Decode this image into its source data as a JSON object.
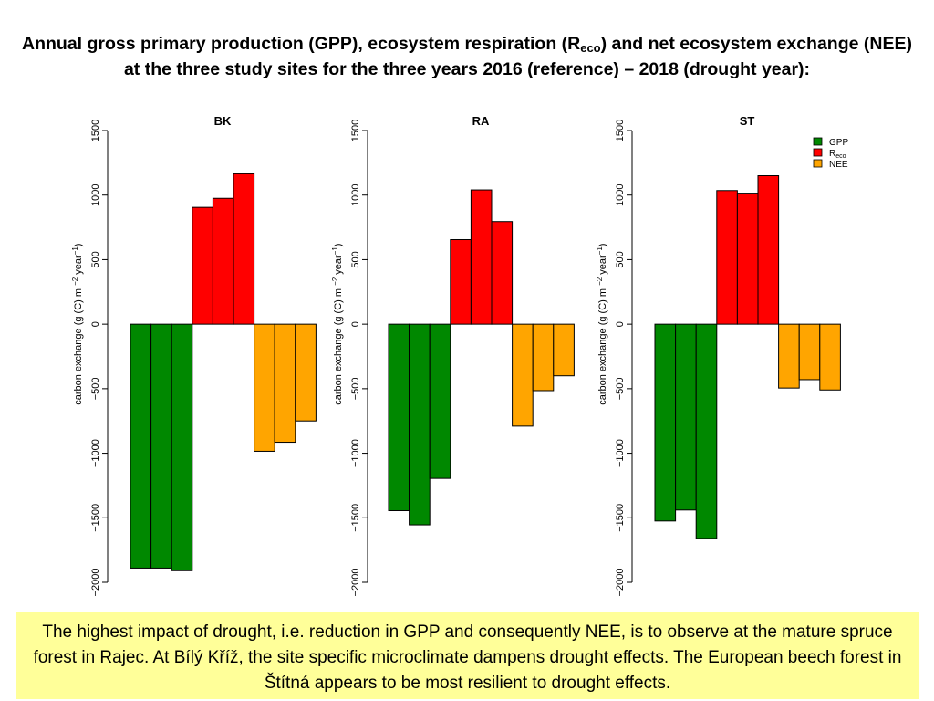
{
  "header": {
    "title_part1": "Annual gross primary production (GPP), ecosystem respiration (R",
    "title_sub": "eco",
    "title_part2": ") and net ecosystem exchange (NEE)",
    "title_line2": "at the three study sites for the three years 2016 (reference) – 2018 (drought year):"
  },
  "chart_data": [
    {
      "type": "bar",
      "title": "BK",
      "ylabel": "carbon exchange (g (C) m−2 year−1)",
      "ylim": [
        -2000,
        1500
      ],
      "yticks": [
        1500,
        1000,
        500,
        0,
        -500,
        -1000,
        -1500,
        -2000
      ],
      "series": [
        {
          "name": "GPP",
          "color": "#008800",
          "values": [
            -1890,
            -1890,
            -1910
          ]
        },
        {
          "name": "Reco",
          "color": "#ff0000",
          "values": [
            905,
            975,
            1165
          ]
        },
        {
          "name": "NEE",
          "color": "#ffa500",
          "values": [
            -985,
            -915,
            -750
          ]
        }
      ]
    },
    {
      "type": "bar",
      "title": "RA",
      "ylabel": "carbon exchange (g (C) m−2 year−1)",
      "ylim": [
        -2000,
        1500
      ],
      "yticks": [
        1500,
        1000,
        500,
        0,
        -500,
        -1000,
        -1500,
        -2000
      ],
      "series": [
        {
          "name": "GPP",
          "color": "#008800",
          "values": [
            -1445,
            -1555,
            -1195
          ]
        },
        {
          "name": "Reco",
          "color": "#ff0000",
          "values": [
            655,
            1040,
            795
          ]
        },
        {
          "name": "NEE",
          "color": "#ffa500",
          "values": [
            -790,
            -515,
            -400
          ]
        }
      ]
    },
    {
      "type": "bar",
      "title": "ST",
      "ylabel": "carbon exchange (g (C) m−2 year−1)",
      "ylim": [
        -2000,
        1500
      ],
      "yticks": [
        1500,
        1000,
        500,
        0,
        -500,
        -1000,
        -1500,
        -2000
      ],
      "legend": {
        "position": "top-right",
        "entries": [
          {
            "label": "GPP",
            "sub": "",
            "color": "#008800"
          },
          {
            "label": "R",
            "sub": "eco",
            "color": "#ff0000"
          },
          {
            "label": "NEE",
            "sub": "",
            "color": "#ffa500"
          }
        ]
      },
      "series": [
        {
          "name": "GPP",
          "color": "#008800",
          "values": [
            -1525,
            -1440,
            -1660
          ]
        },
        {
          "name": "Reco",
          "color": "#ff0000",
          "values": [
            1035,
            1015,
            1150
          ]
        },
        {
          "name": "NEE",
          "color": "#ffa500",
          "values": [
            -495,
            -430,
            -510
          ]
        }
      ]
    }
  ],
  "summary": {
    "text": "The highest impact of drought, i.e. reduction in GPP and consequently NEE, is to observe at the mature spruce forest in Rajec. At Bílý Kříž, the site specific microclimate dampens drought effects. The European beech forest in Štítná appears to be most resilient to drought effects."
  }
}
